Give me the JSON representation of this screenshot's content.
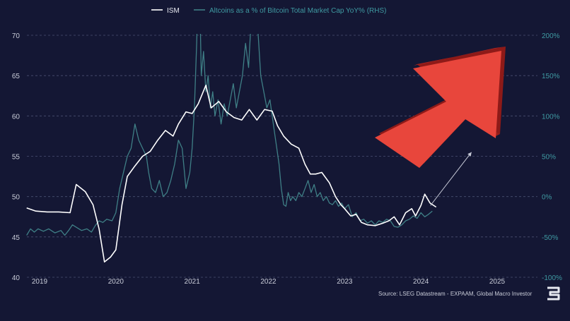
{
  "chart_data": {
    "type": "line",
    "legend": {
      "placement": "top-center"
    },
    "x_ticks": [
      "2019",
      "2020",
      "2021",
      "2022",
      "2023",
      "2024",
      "2025"
    ],
    "xlim": [
      2018.83,
      2025.6
    ],
    "y_left": {
      "ticks": [
        "70",
        "65",
        "60",
        "55",
        "50",
        "45",
        "40"
      ],
      "ylim": [
        40,
        70
      ]
    },
    "y_right": {
      "ticks": [
        "200%",
        "150%",
        "100%",
        "50%",
        "0%",
        "-50%",
        "-100%"
      ],
      "ylim": [
        -100,
        200
      ]
    },
    "grid": "horizontal dashed",
    "series": [
      {
        "name": "ISM",
        "axis": "left",
        "color": "#ffffff",
        "points": [
          [
            2018.83,
            48.6
          ],
          [
            2018.95,
            48.2
          ],
          [
            2019.1,
            48.1
          ],
          [
            2019.25,
            48.1
          ],
          [
            2019.4,
            48.0
          ],
          [
            2019.48,
            51.5
          ],
          [
            2019.6,
            50.6
          ],
          [
            2019.7,
            49.0
          ],
          [
            2019.78,
            46.0
          ],
          [
            2019.85,
            41.9
          ],
          [
            2019.93,
            42.5
          ],
          [
            2020.0,
            43.4
          ],
          [
            2020.08,
            49.0
          ],
          [
            2020.15,
            52.5
          ],
          [
            2020.25,
            53.8
          ],
          [
            2020.35,
            55.0
          ],
          [
            2020.45,
            55.6
          ],
          [
            2020.55,
            57.0
          ],
          [
            2020.65,
            58.2
          ],
          [
            2020.75,
            57.5
          ],
          [
            2020.82,
            59.0
          ],
          [
            2020.92,
            60.5
          ],
          [
            2021.0,
            60.3
          ],
          [
            2021.08,
            61.5
          ],
          [
            2021.18,
            63.8
          ],
          [
            2021.25,
            61.0
          ],
          [
            2021.35,
            61.8
          ],
          [
            2021.45,
            60.5
          ],
          [
            2021.55,
            59.8
          ],
          [
            2021.65,
            59.5
          ],
          [
            2021.75,
            60.8
          ],
          [
            2021.85,
            59.5
          ],
          [
            2021.95,
            60.8
          ],
          [
            2022.05,
            60.6
          ],
          [
            2022.12,
            58.8
          ],
          [
            2022.2,
            57.5
          ],
          [
            2022.3,
            56.5
          ],
          [
            2022.4,
            56.0
          ],
          [
            2022.48,
            54.0
          ],
          [
            2022.55,
            52.8
          ],
          [
            2022.62,
            52.8
          ],
          [
            2022.7,
            53.0
          ],
          [
            2022.8,
            51.7
          ],
          [
            2022.88,
            50.0
          ],
          [
            2022.95,
            49.0
          ],
          [
            2023.0,
            48.5
          ],
          [
            2023.08,
            47.6
          ],
          [
            2023.15,
            47.8
          ],
          [
            2023.22,
            46.8
          ],
          [
            2023.3,
            46.5
          ],
          [
            2023.4,
            46.4
          ],
          [
            2023.5,
            46.7
          ],
          [
            2023.58,
            47.0
          ],
          [
            2023.65,
            47.5
          ],
          [
            2023.72,
            46.5
          ],
          [
            2023.8,
            48.0
          ],
          [
            2023.88,
            48.5
          ],
          [
            2023.93,
            47.6
          ],
          [
            2024.0,
            48.9
          ],
          [
            2024.05,
            50.3
          ],
          [
            2024.12,
            49.2
          ],
          [
            2024.2,
            48.7
          ]
        ]
      },
      {
        "name": "Altcoins as a % of Bitcoin Total Market Cap YoY% (RHS)",
        "axis": "right",
        "color": "#3f7f86",
        "points": [
          [
            2018.83,
            -48
          ],
          [
            2018.88,
            -40
          ],
          [
            2018.93,
            -44
          ],
          [
            2018.98,
            -40
          ],
          [
            2019.05,
            -43
          ],
          [
            2019.12,
            -40
          ],
          [
            2019.2,
            -45
          ],
          [
            2019.28,
            -42
          ],
          [
            2019.33,
            -48
          ],
          [
            2019.38,
            -42
          ],
          [
            2019.43,
            -35
          ],
          [
            2019.48,
            -38
          ],
          [
            2019.55,
            -42
          ],
          [
            2019.62,
            -40
          ],
          [
            2019.68,
            -44
          ],
          [
            2019.73,
            -36
          ],
          [
            2019.78,
            -30
          ],
          [
            2019.83,
            -32
          ],
          [
            2019.88,
            -28
          ],
          [
            2019.95,
            -30
          ],
          [
            2020.0,
            -20
          ],
          [
            2020.05,
            10
          ],
          [
            2020.1,
            30
          ],
          [
            2020.15,
            50
          ],
          [
            2020.2,
            60
          ],
          [
            2020.25,
            90
          ],
          [
            2020.3,
            70
          ],
          [
            2020.35,
            60
          ],
          [
            2020.4,
            50
          ],
          [
            2020.43,
            30
          ],
          [
            2020.47,
            10
          ],
          [
            2020.52,
            5
          ],
          [
            2020.57,
            20
          ],
          [
            2020.62,
            0
          ],
          [
            2020.67,
            5
          ],
          [
            2020.72,
            20
          ],
          [
            2020.77,
            40
          ],
          [
            2020.82,
            70
          ],
          [
            2020.87,
            60
          ],
          [
            2020.92,
            10
          ],
          [
            2020.97,
            30
          ],
          [
            2021.0,
            60
          ],
          [
            2021.03,
            110
          ],
          [
            2021.06,
            190
          ],
          [
            2021.09,
            300
          ],
          [
            2021.12,
            150
          ],
          [
            2021.15,
            180
          ],
          [
            2021.18,
            130
          ],
          [
            2021.21,
            150
          ],
          [
            2021.24,
            110
          ],
          [
            2021.27,
            130
          ],
          [
            2021.3,
            100
          ],
          [
            2021.34,
            120
          ],
          [
            2021.38,
            90
          ],
          [
            2021.42,
            115
          ],
          [
            2021.46,
            100
          ],
          [
            2021.5,
            120
          ],
          [
            2021.54,
            140
          ],
          [
            2021.58,
            110
          ],
          [
            2021.62,
            130
          ],
          [
            2021.66,
            150
          ],
          [
            2021.7,
            190
          ],
          [
            2021.74,
            160
          ],
          [
            2021.78,
            230
          ],
          [
            2021.82,
            330
          ],
          [
            2021.86,
            210
          ],
          [
            2021.9,
            150
          ],
          [
            2021.94,
            130
          ],
          [
            2021.98,
            110
          ],
          [
            2022.02,
            120
          ],
          [
            2022.05,
            100
          ],
          [
            2022.08,
            80
          ],
          [
            2022.11,
            60
          ],
          [
            2022.14,
            40
          ],
          [
            2022.17,
            10
          ],
          [
            2022.2,
            -10
          ],
          [
            2022.23,
            -12
          ],
          [
            2022.26,
            5
          ],
          [
            2022.29,
            -5
          ],
          [
            2022.32,
            0
          ],
          [
            2022.36,
            -5
          ],
          [
            2022.4,
            5
          ],
          [
            2022.44,
            0
          ],
          [
            2022.48,
            10
          ],
          [
            2022.52,
            20
          ],
          [
            2022.56,
            5
          ],
          [
            2022.6,
            15
          ],
          [
            2022.64,
            0
          ],
          [
            2022.68,
            5
          ],
          [
            2022.72,
            -5
          ],
          [
            2022.76,
            0
          ],
          [
            2022.8,
            -8
          ],
          [
            2022.84,
            -10
          ],
          [
            2022.88,
            -5
          ],
          [
            2022.92,
            -12
          ],
          [
            2022.96,
            -8
          ],
          [
            2023.0,
            -15
          ],
          [
            2023.05,
            -10
          ],
          [
            2023.1,
            -25
          ],
          [
            2023.15,
            -20
          ],
          [
            2023.2,
            -30
          ],
          [
            2023.25,
            -28
          ],
          [
            2023.3,
            -33
          ],
          [
            2023.35,
            -30
          ],
          [
            2023.4,
            -35
          ],
          [
            2023.45,
            -30
          ],
          [
            2023.5,
            -32
          ],
          [
            2023.55,
            -28
          ],
          [
            2023.6,
            -30
          ],
          [
            2023.65,
            -37
          ],
          [
            2023.7,
            -38
          ],
          [
            2023.75,
            -35
          ],
          [
            2023.8,
            -30
          ],
          [
            2023.85,
            -28
          ],
          [
            2023.9,
            -24
          ],
          [
            2023.95,
            -27
          ],
          [
            2024.0,
            -20
          ],
          [
            2024.05,
            -25
          ],
          [
            2024.1,
            -22
          ],
          [
            2024.15,
            -18
          ]
        ]
      }
    ],
    "annotations": {
      "trend_arrow": {
        "from": [
          2024.2,
          48.9
        ],
        "to": [
          2024.7,
          55.5
        ],
        "color": "#c8cbd8"
      },
      "big_arrow": {
        "color": "#e8463c",
        "direction": "up-right"
      }
    }
  },
  "source_text": "Source: LSEG Datastream - EXPAAM, Global Macro Investor",
  "logo_icon": "global-macro-investor-logo"
}
